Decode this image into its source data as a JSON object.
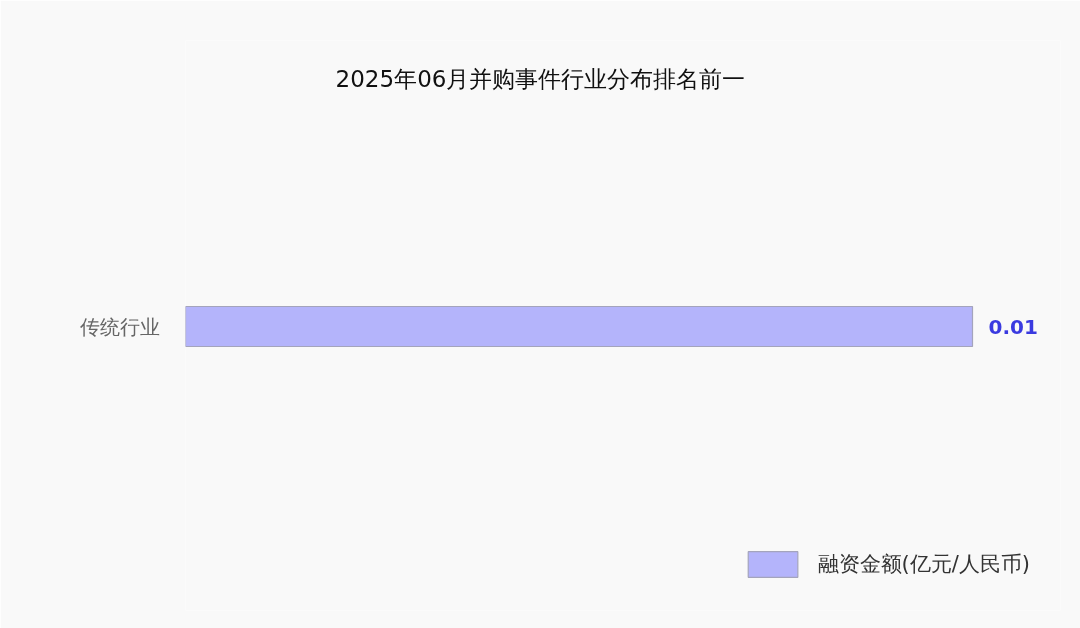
{
  "chart_data": {
    "type": "bar",
    "orientation": "horizontal",
    "title": "2025年06月并购事件行业分布排名前一",
    "categories": [
      "传统行业"
    ],
    "series": [
      {
        "name": "融资金额(亿元/人民币)",
        "color": "#b4b4fb",
        "values": [
          0.01
        ]
      }
    ],
    "data_labels": true,
    "legend": "bottom right",
    "tick_labels": "y"
  }
}
